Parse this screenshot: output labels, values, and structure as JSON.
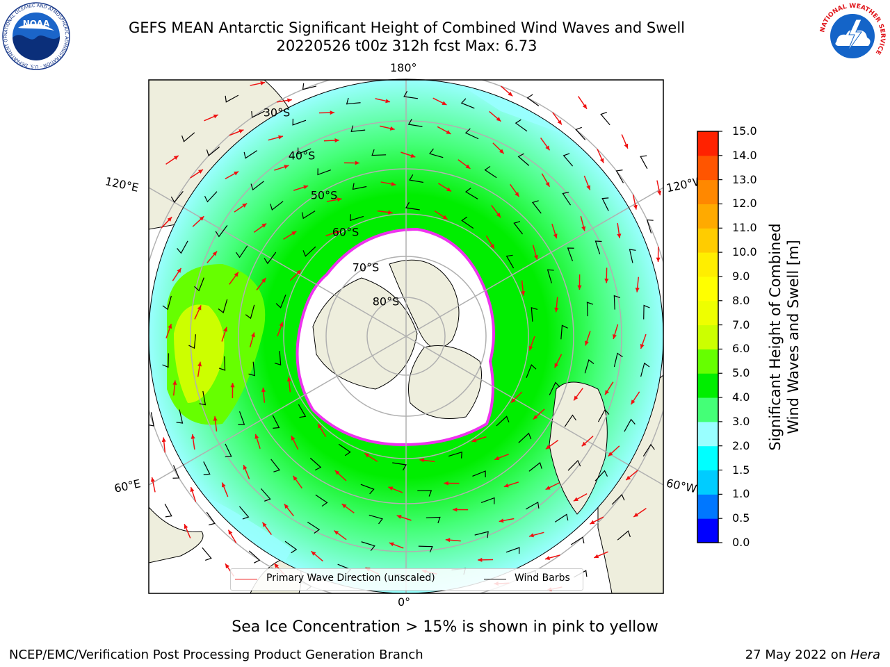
{
  "title": {
    "line1": "GEFS MEAN Antarctic Significant Height of Combined Wind Waves and Swell",
    "line2": "20220526 t00z 312h fcst   Max: 6.73"
  },
  "logos": {
    "noaa_text": "NOAA",
    "noaa_ring_text": "NATIONAL OCEANIC AND ATMOSPHERIC ADMINISTRATION · U.S. DEPARTMENT OF COMMERCE",
    "nws_ring_text": "NATIONAL WEATHER SERVICE"
  },
  "map": {
    "projection": "south-polar-stereographic",
    "lon_labels": {
      "top": "180°",
      "bottom": "0°",
      "upper_left": "120°E",
      "upper_right": "120°W",
      "lower_left": "60°E",
      "lower_right": "60°W"
    },
    "lat_labels": [
      "30°S",
      "40°S",
      "50°S",
      "60°S",
      "70°S",
      "80°S"
    ],
    "colors": {
      "land": "#eeeedd",
      "ice_shelf": "#ffffff",
      "grid": "#b0b0b0",
      "coast": "#000000",
      "sea_ice_edge": "#ee33ee",
      "wave_arrow": "#ee1111",
      "wind_barb": "#000000"
    }
  },
  "legend": {
    "wave_label": "Primary Wave Direction (unscaled)",
    "wind_label": "Wind Barbs"
  },
  "colorbar": {
    "label_line1": "Significant Height of Combined",
    "label_line2": "Wind Waves and Swell [m]",
    "ticks": [
      "0.0",
      "0.5",
      "1.0",
      "1.5",
      "2.0",
      "3.0",
      "4.0",
      "5.0",
      "6.0",
      "7.0",
      "8.0",
      "9.0",
      "10.0",
      "11.0",
      "12.0",
      "13.0",
      "14.0",
      "15.0"
    ],
    "colors": [
      "#0000ff",
      "#0077ff",
      "#00ccff",
      "#00ffff",
      "#99ffff",
      "#44ff77",
      "#00ee00",
      "#66ff00",
      "#ccff00",
      "#eeff00",
      "#ffff00",
      "#ffee00",
      "#ffcc00",
      "#ffaa00",
      "#ff8800",
      "#ff5500",
      "#ff2200"
    ]
  },
  "note": "Sea Ice Concentration > 15% is shown in pink to yellow",
  "footer": {
    "left": "NCEP/EMC/Verification Post Processing Product Generation Branch",
    "right_prefix": "27 May 2022 on ",
    "right_machine": "Hera"
  },
  "chart_data": {
    "type": "heatmap",
    "variable": "Significant Height of Combined Wind Waves and Swell",
    "units": "m",
    "max": 6.73,
    "scale_levels": [
      0.0,
      0.5,
      1.0,
      1.5,
      2.0,
      3.0,
      4.0,
      5.0,
      6.0,
      7.0,
      8.0,
      9.0,
      10.0,
      11.0,
      12.0,
      13.0,
      14.0,
      15.0
    ]
  }
}
